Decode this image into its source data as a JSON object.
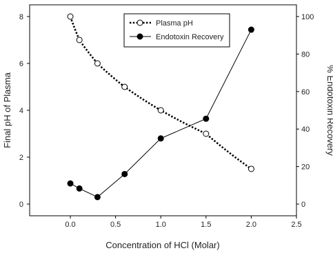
{
  "chart_data": {
    "type": "line",
    "title": "",
    "xlabel": "Concentration of HCl (Molar)",
    "ylabel_left": "Final pH of Plasma",
    "ylabel_right": "% Endotoxin Recovery",
    "xlim": [
      -0.45,
      2.5
    ],
    "ylim_left": [
      -0.5,
      8.5
    ],
    "ylim_right": [
      -6.25,
      106.25
    ],
    "x_ticks": [
      0.0,
      0.5,
      1.0,
      1.5,
      2.0,
      2.5
    ],
    "x_tick_labels": [
      "0.0",
      "0.5",
      "1.0",
      "1.5",
      "2.0",
      "2.5"
    ],
    "y_left_ticks": [
      0,
      2,
      4,
      6,
      8
    ],
    "y_left_tick_labels": [
      "0",
      "2",
      "4",
      "6",
      "8"
    ],
    "y_right_ticks": [
      0,
      20,
      40,
      60,
      80,
      100
    ],
    "y_right_tick_labels": [
      "0",
      "20",
      "40",
      "60",
      "80",
      "100"
    ],
    "grid": false,
    "legend_position": "top-center",
    "series": [
      {
        "name": "Plasma pH",
        "axis": "left",
        "marker": "open-circle",
        "line_style": "dotted",
        "color": "#000000",
        "x": [
          0.0,
          0.1,
          0.3,
          0.6,
          1.0,
          1.5,
          2.0
        ],
        "y": [
          8.0,
          7.0,
          6.0,
          5.0,
          4.0,
          3.0,
          1.5
        ]
      },
      {
        "name": "Endotoxin Recovery",
        "axis": "right",
        "marker": "filled-circle",
        "line_style": "solid",
        "color": "#000000",
        "x": [
          0.0,
          0.1,
          0.3,
          0.6,
          1.0,
          1.5,
          2.0
        ],
        "y": [
          11,
          8.3,
          3.7,
          16,
          35,
          45.5,
          93
        ]
      }
    ]
  }
}
